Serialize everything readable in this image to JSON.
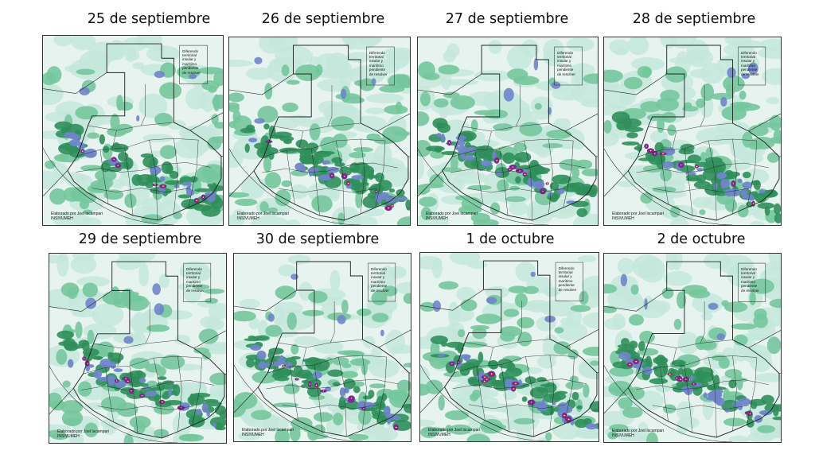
{
  "map_note": [
    "Diferendo",
    "territorial",
    "insular y",
    "marítimo",
    "pendiente",
    "de resolver"
  ],
  "credit": "Elaborado  por Joel Iscampari",
  "agency": "INSIVUMEH",
  "colors": {
    "background": "#e6f3ef",
    "light": "#c4e6dc",
    "medium": "#74c69d",
    "dark": "#2f8f5b",
    "blue": "#6f85c9",
    "purple": "#7b2a8f",
    "magenta": "#c0267a",
    "red": "#e0301e",
    "yellow": "#f3e44a",
    "border": "#222222"
  },
  "panels": [
    {
      "date": "25 de septiembre",
      "intensity": 0.45
    },
    {
      "date": "26 de septiembre",
      "intensity": 0.4
    },
    {
      "date": "27 de septiembre",
      "intensity": 0.5
    },
    {
      "date": "28 de septiembre",
      "intensity": 0.55
    },
    {
      "date": "29 de septiembre",
      "intensity": 0.65
    },
    {
      "date": "30 de septiembre",
      "intensity": 0.8
    },
    {
      "date": "1 de octubre",
      "intensity": 0.85
    },
    {
      "date": "2 de octubre",
      "intensity": 0.75
    }
  ]
}
